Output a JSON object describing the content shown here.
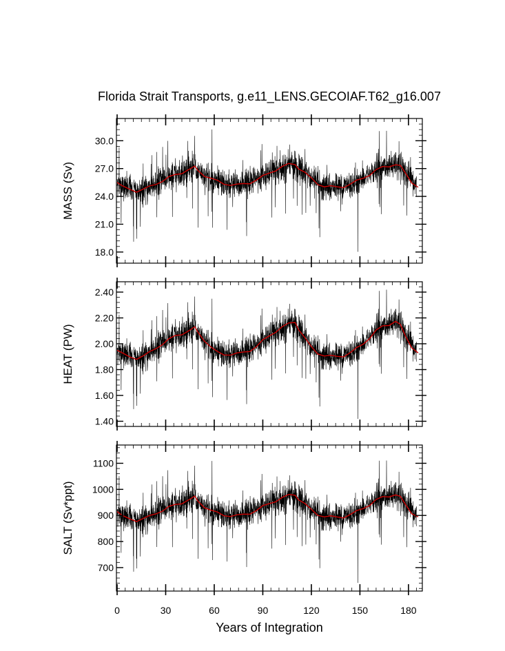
{
  "title": "Florida Strait Transports, g.e11_LENS.GECOIAF.T62_g16.007",
  "xlabel": "Years of Integration",
  "colors": {
    "raw": "#000000",
    "smoothed": "#cc0000",
    "frame": "#000000"
  },
  "chart_data": [
    {
      "type": "line",
      "panel": "mass",
      "ylabel": "MASS (Sv)",
      "xlim": [
        0,
        186
      ],
      "ylim": [
        16.8,
        32.4
      ],
      "yticks": [
        18.0,
        21.0,
        24.0,
        27.0,
        30.0
      ],
      "ytick_labels": [
        "18.0",
        "21.0",
        "24.0",
        "27.0",
        "30.0"
      ],
      "xticks": [
        0,
        30,
        60,
        90,
        120,
        150,
        180
      ],
      "series_points": 2232,
      "smooth": {
        "x": [
          0,
          3,
          8,
          12,
          16,
          20,
          24,
          28,
          32,
          36,
          40,
          44,
          48,
          50,
          54,
          58,
          62,
          66,
          70,
          74,
          78,
          82,
          86,
          90,
          94,
          98,
          102,
          106,
          110,
          112,
          116,
          120,
          124,
          128,
          132,
          136,
          140,
          144,
          148,
          152,
          156,
          160,
          164,
          168,
          172,
          175,
          178,
          182,
          186
        ],
        "y": [
          25.5,
          25.0,
          24.8,
          24.6,
          24.7,
          25.0,
          25.4,
          25.7,
          26.0,
          26.3,
          26.6,
          26.9,
          27.1,
          26.8,
          26.3,
          25.9,
          25.6,
          25.4,
          25.3,
          25.2,
          25.3,
          25.5,
          25.8,
          26.1,
          26.5,
          26.9,
          27.2,
          27.4,
          27.5,
          27.1,
          26.5,
          25.9,
          25.4,
          25.1,
          25.0,
          25.0,
          25.1,
          25.3,
          25.6,
          26.0,
          26.4,
          26.8,
          27.1,
          27.3,
          27.5,
          27.2,
          26.5,
          25.6,
          25.0
        ]
      }
    },
    {
      "type": "line",
      "panel": "heat",
      "ylabel": "HEAT (PW)",
      "xlim": [
        0,
        186
      ],
      "ylim": [
        1.36,
        2.48
      ],
      "yticks": [
        1.4,
        1.6,
        1.8,
        2.0,
        2.2,
        2.4
      ],
      "ytick_labels": [
        "1.40",
        "1.60",
        "1.80",
        "2.00",
        "2.20",
        "2.40"
      ],
      "xticks": [
        0,
        30,
        60,
        90,
        120,
        150,
        180
      ],
      "series_points": 2232,
      "smooth": {
        "x": [
          0,
          3,
          8,
          12,
          16,
          20,
          24,
          28,
          32,
          36,
          40,
          44,
          48,
          50,
          54,
          58,
          62,
          66,
          70,
          74,
          78,
          82,
          86,
          90,
          94,
          98,
          102,
          106,
          110,
          112,
          116,
          120,
          124,
          128,
          132,
          136,
          140,
          144,
          148,
          152,
          156,
          160,
          164,
          168,
          172,
          175,
          178,
          182,
          186
        ],
        "y": [
          1.95,
          1.92,
          1.9,
          1.89,
          1.9,
          1.93,
          1.97,
          2.0,
          2.03,
          2.06,
          2.08,
          2.1,
          2.12,
          2.09,
          2.03,
          1.97,
          1.93,
          1.92,
          1.92,
          1.92,
          1.93,
          1.95,
          1.98,
          2.02,
          2.06,
          2.1,
          2.13,
          2.15,
          2.17,
          2.12,
          2.04,
          1.97,
          1.93,
          1.91,
          1.9,
          1.9,
          1.91,
          1.93,
          1.96,
          2.0,
          2.05,
          2.1,
          2.13,
          2.15,
          2.18,
          2.14,
          2.06,
          1.98,
          1.93
        ]
      }
    },
    {
      "type": "line",
      "panel": "salt",
      "ylabel": "SALT (Sv*ppt)",
      "xlim": [
        0,
        186
      ],
      "ylim": [
        610,
        1170
      ],
      "yticks": [
        700,
        800,
        900,
        1000,
        1100
      ],
      "ytick_labels": [
        "700",
        "800",
        "900",
        "1000",
        "1100"
      ],
      "xticks": [
        0,
        30,
        60,
        90,
        120,
        150,
        180
      ],
      "xtick_labels": [
        "0",
        "30",
        "60",
        "90",
        "120",
        "150",
        "180"
      ],
      "series_points": 2232,
      "smooth": {
        "x": [
          0,
          3,
          8,
          12,
          16,
          20,
          24,
          28,
          32,
          36,
          40,
          44,
          48,
          50,
          54,
          58,
          62,
          66,
          70,
          74,
          78,
          82,
          86,
          90,
          94,
          98,
          102,
          106,
          110,
          112,
          116,
          120,
          124,
          128,
          132,
          136,
          140,
          144,
          148,
          152,
          156,
          160,
          164,
          168,
          172,
          175,
          178,
          182,
          186
        ],
        "y": [
          915,
          895,
          888,
          882,
          885,
          895,
          910,
          920,
          930,
          940,
          950,
          960,
          968,
          955,
          935,
          918,
          908,
          902,
          900,
          898,
          902,
          910,
          920,
          932,
          945,
          958,
          968,
          975,
          980,
          965,
          942,
          920,
          905,
          897,
          893,
          893,
          896,
          903,
          913,
          928,
          943,
          958,
          968,
          975,
          982,
          968,
          942,
          912,
          895
        ]
      }
    }
  ]
}
